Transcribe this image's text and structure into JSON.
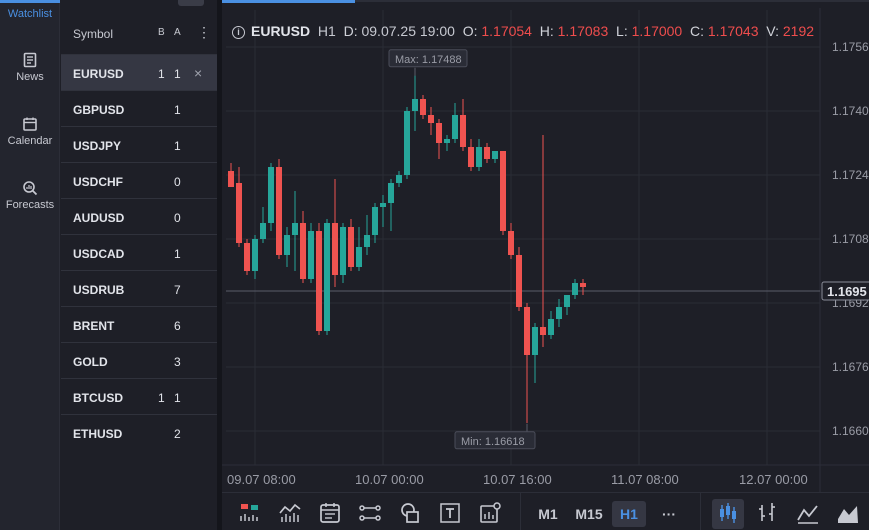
{
  "nav": {
    "items": [
      {
        "label": "Watchlist",
        "icon": "list-icon",
        "active": true
      },
      {
        "label": "News",
        "icon": "news-icon"
      },
      {
        "label": "Calendar",
        "icon": "calendar-icon"
      },
      {
        "label": "Forecasts",
        "icon": "forecast-icon"
      }
    ]
  },
  "watchlist": {
    "header": {
      "symbol": "Symbol",
      "bid": "B",
      "ask": "A",
      "more": "⋮"
    },
    "close_glyph": "×",
    "rows": [
      {
        "symbol": "EURUSD",
        "b": "1",
        "a": "1",
        "selected": true
      },
      {
        "symbol": "GBPUSD",
        "b": "",
        "a": "1"
      },
      {
        "symbol": "USDJPY",
        "b": "",
        "a": "1"
      },
      {
        "symbol": "USDCHF",
        "b": "",
        "a": "0"
      },
      {
        "symbol": "AUDUSD",
        "b": "",
        "a": "0"
      },
      {
        "symbol": "USDCAD",
        "b": "",
        "a": "1"
      },
      {
        "symbol": "USDRUB",
        "b": "",
        "a": "7"
      },
      {
        "symbol": "BRENT",
        "b": "",
        "a": "6"
      },
      {
        "symbol": "GOLD",
        "b": "",
        "a": "3"
      },
      {
        "symbol": "BTCUSD",
        "b": "1",
        "a": "1"
      },
      {
        "symbol": "ETHUSD",
        "b": "",
        "a": "2"
      }
    ]
  },
  "info": {
    "icon_glyph": "i",
    "symbol": "EURUSD",
    "timeframe": "H1",
    "d_label": "D:",
    "date": "09.07.25 19:00",
    "o_label": "O:",
    "open": "1.17054",
    "h_label": "H:",
    "high": "1.17083",
    "l_label": "L:",
    "low": "1.17000",
    "c_label": "C:",
    "close": "1.17043",
    "v_label": "V:",
    "volume": "2192"
  },
  "chart_data": {
    "type": "candlestick",
    "ylim": [
      1.1655,
      1.1758
    ],
    "y_ticks": [
      "1.1756",
      "1.1740",
      "1.1724",
      "1.1708",
      "1.1692",
      "1.1676",
      "1.1660"
    ],
    "y_tick_values": [
      1.1756,
      1.174,
      1.1724,
      1.1708,
      1.1692,
      1.1676,
      1.166
    ],
    "x_ticks": [
      "09.07 08:00",
      "10.07 00:00",
      "10.07 16:00",
      "11.07 08:00",
      "12.07 00:00"
    ],
    "x_tick_index": [
      0,
      16,
      32,
      48,
      64
    ],
    "current_price_label": "1.1695",
    "current_price": 1.1695,
    "max_label": "Max: 1.17488",
    "max_value": 1.17488,
    "max_index": 23,
    "min_label": "Min: 1.16618",
    "min_value": 1.16618,
    "min_index": 37,
    "up_color": "#26a69a",
    "down_color": "#ef5350",
    "candles": [
      {
        "o": 1.1725,
        "h": 1.1727,
        "l": 1.1721,
        "c": 1.1721
      },
      {
        "o": 1.1722,
        "h": 1.1726,
        "l": 1.1706,
        "c": 1.1707
      },
      {
        "o": 1.1707,
        "h": 1.1708,
        "l": 1.1699,
        "c": 1.17
      },
      {
        "o": 1.17,
        "h": 1.1709,
        "l": 1.1698,
        "c": 1.1708
      },
      {
        "o": 1.1708,
        "h": 1.1716,
        "l": 1.1707,
        "c": 1.1712
      },
      {
        "o": 1.1712,
        "h": 1.1727,
        "l": 1.171,
        "c": 1.1726
      },
      {
        "o": 1.1726,
        "h": 1.1728,
        "l": 1.1703,
        "c": 1.1704
      },
      {
        "o": 1.1704,
        "h": 1.1711,
        "l": 1.1701,
        "c": 1.1709
      },
      {
        "o": 1.1709,
        "h": 1.172,
        "l": 1.17,
        "c": 1.1712
      },
      {
        "o": 1.1712,
        "h": 1.1715,
        "l": 1.1697,
        "c": 1.1698
      },
      {
        "o": 1.1698,
        "h": 1.1712,
        "l": 1.1697,
        "c": 1.171
      },
      {
        "o": 1.171,
        "h": 1.1712,
        "l": 1.1684,
        "c": 1.1685
      },
      {
        "o": 1.1685,
        "h": 1.1713,
        "l": 1.1684,
        "c": 1.1712
      },
      {
        "o": 1.1712,
        "h": 1.1723,
        "l": 1.1696,
        "c": 1.1699
      },
      {
        "o": 1.1699,
        "h": 1.1712,
        "l": 1.1697,
        "c": 1.1711
      },
      {
        "o": 1.1711,
        "h": 1.1713,
        "l": 1.17,
        "c": 1.1701
      },
      {
        "o": 1.1701,
        "h": 1.1711,
        "l": 1.17,
        "c": 1.1706
      },
      {
        "o": 1.1706,
        "h": 1.1714,
        "l": 1.1704,
        "c": 1.1709
      },
      {
        "o": 1.1709,
        "h": 1.1717,
        "l": 1.1707,
        "c": 1.1716
      },
      {
        "o": 1.1716,
        "h": 1.1719,
        "l": 1.1711,
        "c": 1.1717
      },
      {
        "o": 1.1717,
        "h": 1.1723,
        "l": 1.171,
        "c": 1.1722
      },
      {
        "o": 1.1722,
        "h": 1.1725,
        "l": 1.1721,
        "c": 1.1724
      },
      {
        "o": 1.1724,
        "h": 1.1741,
        "l": 1.1723,
        "c": 1.174
      },
      {
        "o": 1.174,
        "h": 1.1749,
        "l": 1.1735,
        "c": 1.1743
      },
      {
        "o": 1.1743,
        "h": 1.1744,
        "l": 1.1738,
        "c": 1.1739
      },
      {
        "o": 1.1739,
        "h": 1.1741,
        "l": 1.1734,
        "c": 1.1737
      },
      {
        "o": 1.1737,
        "h": 1.1738,
        "l": 1.1728,
        "c": 1.1732
      },
      {
        "o": 1.1732,
        "h": 1.1734,
        "l": 1.173,
        "c": 1.1733
      },
      {
        "o": 1.1733,
        "h": 1.1742,
        "l": 1.1732,
        "c": 1.1739
      },
      {
        "o": 1.1739,
        "h": 1.1743,
        "l": 1.173,
        "c": 1.1731
      },
      {
        "o": 1.1731,
        "h": 1.1733,
        "l": 1.1725,
        "c": 1.1726
      },
      {
        "o": 1.1726,
        "h": 1.1733,
        "l": 1.1725,
        "c": 1.1731
      },
      {
        "o": 1.1731,
        "h": 1.1732,
        "l": 1.1727,
        "c": 1.1728
      },
      {
        "o": 1.1728,
        "h": 1.1729,
        "l": 1.1727,
        "c": 1.173
      },
      {
        "o": 1.173,
        "h": 1.1729,
        "l": 1.1709,
        "c": 1.171
      },
      {
        "o": 1.171,
        "h": 1.1712,
        "l": 1.1703,
        "c": 1.1704
      },
      {
        "o": 1.1704,
        "h": 1.1706,
        "l": 1.169,
        "c": 1.1691
      },
      {
        "o": 1.1691,
        "h": 1.1692,
        "l": 1.1662,
        "c": 1.1679
      },
      {
        "o": 1.1679,
        "h": 1.1687,
        "l": 1.1672,
        "c": 1.1686
      },
      {
        "o": 1.1686,
        "h": 1.1734,
        "l": 1.1681,
        "c": 1.1684
      },
      {
        "o": 1.1684,
        "h": 1.169,
        "l": 1.1683,
        "c": 1.1688
      },
      {
        "o": 1.1688,
        "h": 1.1693,
        "l": 1.1686,
        "c": 1.1691
      },
      {
        "o": 1.1691,
        "h": 1.1694,
        "l": 1.1689,
        "c": 1.1694
      },
      {
        "o": 1.1694,
        "h": 1.1698,
        "l": 1.1693,
        "c": 1.1697
      },
      {
        "o": 1.1697,
        "h": 1.1698,
        "l": 1.1694,
        "c": 1.1696
      }
    ]
  },
  "toolbar": {
    "icons": [
      "candle-volume-icon",
      "indicator-icon",
      "calendar-tool-icon",
      "line-tool-icon",
      "shapes-icon",
      "text-tool-icon",
      "settings-chart-icon"
    ],
    "timeframes": [
      {
        "label": "M1"
      },
      {
        "label": "M15"
      },
      {
        "label": "H1",
        "active": true
      }
    ],
    "more": "···",
    "chart_types": [
      "candles-icon",
      "bars-icon",
      "line-chart-icon",
      "area-chart-icon"
    ]
  }
}
